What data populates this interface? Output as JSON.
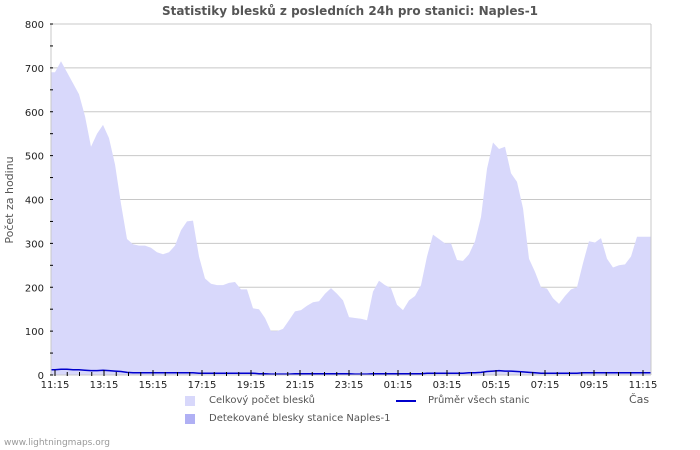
{
  "title": "Statistiky blesků z posledních 24h pro stanici: Naples-1",
  "footer": "www.lightningmaps.org",
  "colors": {
    "total_fill": "#d8d8fb",
    "station_fill": "#b0b0f4",
    "average_line": "#0000cc",
    "grid": "#c8c8c8",
    "axis": "#c8c8c8"
  },
  "legend": {
    "total": "Celkový počet blesků",
    "station": "Detekované blesky stanice Naples-1",
    "average": "Průměr všech stanic"
  },
  "chart_data": {
    "type": "area",
    "title": "Statistiky blesků z posledních 24h pro stanici: Naples-1",
    "xlabel": "Čas",
    "ylabel": "Počet za hodinu",
    "ylim": [
      0,
      800
    ],
    "yticks": [
      0,
      100,
      200,
      300,
      400,
      500,
      600,
      700,
      800
    ],
    "xticks": [
      "11:15",
      "13:15",
      "15:15",
      "17:15",
      "19:15",
      "21:15",
      "23:15",
      "01:15",
      "03:15",
      "05:15",
      "07:15",
      "09:15",
      "11:15"
    ],
    "grid": true,
    "legend_position": "bottom",
    "x_step_minutes": 15,
    "series": [
      {
        "name": "Celkový počet blesků",
        "type": "area",
        "values": [
          690,
          715,
          690,
          665,
          640,
          590,
          520,
          550,
          570,
          540,
          480,
          390,
          310,
          298,
          295,
          295,
          290,
          280,
          275,
          280,
          295,
          330,
          350,
          352,
          270,
          220,
          208,
          205,
          205,
          210,
          212,
          195,
          195,
          152,
          150,
          130,
          100,
          100,
          105,
          125,
          145,
          148,
          158,
          166,
          168,
          185,
          198,
          185,
          170,
          132,
          130,
          128,
          125,
          190,
          215,
          205,
          198,
          160,
          148,
          170,
          180,
          205,
          270,
          320,
          310,
          300,
          300,
          262,
          260,
          275,
          305,
          360,
          470,
          530,
          515,
          520,
          460,
          440,
          380,
          265,
          235,
          200,
          197,
          175,
          162,
          180,
          195,
          200,
          255,
          305,
          302,
          312,
          265,
          245,
          250,
          252,
          270,
          315,
          315
        ]
      },
      {
        "name": "Detekované blesky stanice Naples-1",
        "type": "area",
        "values": []
      },
      {
        "name": "Průměr všech stanic",
        "type": "line",
        "values": [
          12,
          13,
          13,
          12,
          12,
          11,
          10,
          10,
          11,
          10,
          9,
          8,
          6,
          5,
          5,
          5,
          5,
          5,
          5,
          5,
          5,
          5,
          5,
          5,
          4,
          4,
          4,
          4,
          4,
          4,
          4,
          4,
          4,
          4,
          3,
          3,
          2,
          2,
          2,
          2,
          3,
          3,
          3,
          3,
          3,
          3,
          3,
          3,
          3,
          3,
          2,
          2,
          2,
          3,
          3,
          3,
          3,
          3,
          3,
          3,
          3,
          3,
          4,
          4,
          4,
          4,
          4,
          4,
          4,
          5,
          5,
          6,
          8,
          9,
          10,
          9,
          9,
          8,
          7,
          6,
          5,
          4,
          4,
          4,
          4,
          4,
          4,
          4,
          5,
          5,
          5,
          5,
          5,
          5,
          5,
          5,
          5,
          5,
          5
        ]
      }
    ]
  }
}
